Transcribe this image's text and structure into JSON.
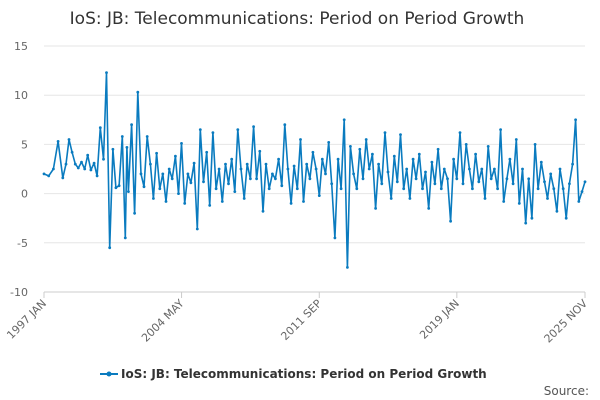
{
  "chart_data": {
    "type": "line",
    "title": "IoS: JB: Telecommunications: Period on Period Growth",
    "xlabel": "",
    "ylabel": "",
    "ylim": [
      -10,
      15
    ],
    "yticks": [
      15,
      10,
      5,
      0,
      -5,
      -10
    ],
    "xlim": [
      1997.0,
      2025.83
    ],
    "xtick_values": [
      1997.0,
      2004.33,
      2011.67,
      2019.0,
      2025.83
    ],
    "xtick_labels": [
      "1997 JAN",
      "2004 MAY",
      "2011 SEP",
      "2019 JAN",
      "2025 NOV"
    ],
    "grid": "horizontal",
    "legend_position": "bottom",
    "series": [
      {
        "name": "IoS: JB: Telecommunications: Period on Period Growth",
        "color": "#0a7bbf",
        "x": [
          1997.0,
          1997.25,
          1997.5,
          1997.75,
          1998.0,
          1998.17,
          1998.33,
          1998.5,
          1998.67,
          1998.83,
          1999.0,
          1999.17,
          1999.33,
          1999.5,
          1999.67,
          1999.83,
          2000.0,
          2000.17,
          2000.33,
          2000.5,
          2000.67,
          2000.83,
          2001.0,
          2001.17,
          2001.33,
          2001.42,
          2001.5,
          2001.67,
          2001.83,
          2002.0,
          2002.17,
          2002.33,
          2002.5,
          2002.67,
          2002.83,
          2003.0,
          2003.17,
          2003.33,
          2003.5,
          2003.67,
          2003.83,
          2004.0,
          2004.17,
          2004.33,
          2004.5,
          2004.67,
          2004.83,
          2005.0,
          2005.17,
          2005.33,
          2005.5,
          2005.67,
          2005.83,
          2006.0,
          2006.17,
          2006.33,
          2006.5,
          2006.67,
          2006.83,
          2007.0,
          2007.17,
          2007.33,
          2007.5,
          2007.67,
          2007.83,
          2008.0,
          2008.17,
          2008.33,
          2008.5,
          2008.67,
          2008.83,
          2009.0,
          2009.17,
          2009.33,
          2009.5,
          2009.67,
          2009.83,
          2010.0,
          2010.17,
          2010.33,
          2010.5,
          2010.67,
          2010.83,
          2011.0,
          2011.17,
          2011.33,
          2011.5,
          2011.67,
          2011.83,
          2012.0,
          2012.17,
          2012.33,
          2012.5,
          2012.67,
          2012.83,
          2013.0,
          2013.17,
          2013.33,
          2013.5,
          2013.67,
          2013.83,
          2014.0,
          2014.17,
          2014.33,
          2014.5,
          2014.67,
          2014.83,
          2015.0,
          2015.17,
          2015.33,
          2015.5,
          2015.67,
          2015.83,
          2016.0,
          2016.17,
          2016.33,
          2016.5,
          2016.67,
          2016.83,
          2017.0,
          2017.17,
          2017.33,
          2017.5,
          2017.67,
          2017.83,
          2018.0,
          2018.17,
          2018.33,
          2018.5,
          2018.67,
          2018.83,
          2019.0,
          2019.17,
          2019.33,
          2019.5,
          2019.67,
          2019.83,
          2020.0,
          2020.17,
          2020.33,
          2020.5,
          2020.67,
          2020.83,
          2021.0,
          2021.17,
          2021.33,
          2021.5,
          2021.67,
          2021.83,
          2022.0,
          2022.17,
          2022.33,
          2022.5,
          2022.67,
          2022.83,
          2023.0,
          2023.17,
          2023.33,
          2023.5,
          2023.67,
          2023.83,
          2024.0,
          2024.17,
          2024.33,
          2024.5,
          2024.67,
          2024.83,
          2025.0,
          2025.17,
          2025.33,
          2025.5,
          2025.67,
          2025.83
        ],
        "y": [
          2.0,
          1.8,
          2.5,
          5.3,
          1.6,
          3.0,
          5.5,
          4.2,
          3.0,
          2.6,
          3.2,
          2.5,
          3.9,
          2.4,
          3.1,
          1.8,
          6.7,
          3.5,
          12.3,
          -5.5,
          4.5,
          0.6,
          0.8,
          5.8,
          -4.5,
          4.7,
          0.2,
          7.0,
          -2.0,
          10.3,
          2.0,
          0.7,
          5.8,
          3.0,
          -0.5,
          4.1,
          0.5,
          2.0,
          -0.8,
          2.5,
          1.5,
          3.8,
          0.0,
          5.1,
          -1.0,
          2.0,
          1.1,
          3.1,
          -3.6,
          6.5,
          1.2,
          4.2,
          -1.2,
          6.2,
          0.5,
          2.5,
          -0.8,
          3.0,
          1.0,
          3.5,
          0.2,
          6.5,
          2.5,
          -0.5,
          3.0,
          1.5,
          6.8,
          1.5,
          4.3,
          -1.8,
          3.0,
          0.5,
          2.0,
          1.5,
          3.5,
          0.8,
          7.0,
          2.5,
          -1.0,
          2.8,
          0.5,
          5.5,
          -0.8,
          3.0,
          1.5,
          4.2,
          2.5,
          -0.2,
          3.5,
          2.0,
          5.2,
          1.0,
          -4.5,
          3.5,
          0.5,
          7.5,
          -7.5,
          4.8,
          2.0,
          0.5,
          4.5,
          1.5,
          5.5,
          2.5,
          4.0,
          -1.5,
          3.0,
          1.0,
          6.2,
          2.2,
          -0.5,
          3.8,
          1.2,
          6.0,
          0.5,
          2.5,
          -0.5,
          3.5,
          1.5,
          4.0,
          0.5,
          2.2,
          -1.5,
          3.2,
          1.0,
          4.5,
          0.5,
          2.5,
          1.5,
          -2.8,
          3.5,
          1.5,
          6.2,
          1.0,
          5.0,
          2.5,
          0.5,
          4.0,
          1.2,
          2.5,
          -0.5,
          4.8,
          1.5,
          2.5,
          0.5,
          6.5,
          -0.8,
          1.5,
          3.5,
          1.0,
          5.5,
          -1.0,
          2.5,
          -3.0,
          1.5,
          -2.5,
          5.0,
          0.5,
          3.2,
          1.2,
          -0.5,
          2.0,
          0.5,
          -1.8,
          2.5,
          0.5,
          -2.5,
          1.0,
          3.0,
          7.5,
          -0.8,
          0.2,
          1.2
        ]
      }
    ],
    "legend": [
      "IoS: JB: Telecommunications: Period on Period Growth"
    ],
    "source_label": "Source:"
  }
}
